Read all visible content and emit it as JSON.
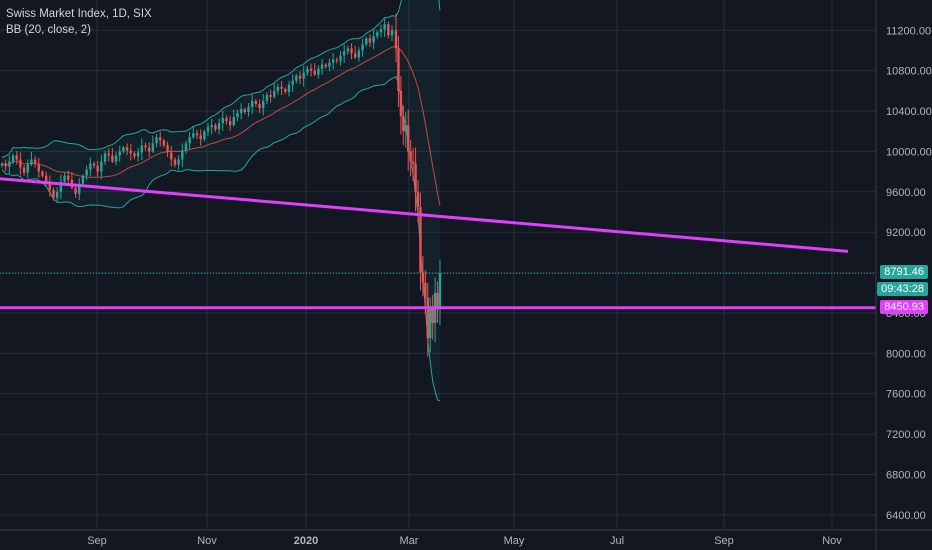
{
  "chart_data": {
    "type": "candlestick",
    "title": "Swiss Market Index, 1D, SIX",
    "indicator": "BB (20, close, 2)",
    "y_ticks": [
      6400,
      6800,
      7200,
      7600,
      8000,
      8400,
      8800,
      9200,
      9600,
      10000,
      10400,
      10800,
      11200
    ],
    "y_tick_labels": [
      "6400.00",
      "6800.00",
      "7200.00",
      "7600.00",
      "8000.00",
      "8400.00",
      "8800.00",
      "9200.00",
      "9600.00",
      "10000.00",
      "10400.00",
      "10800.00",
      "11200.00"
    ],
    "ylim": [
      6250,
      11500
    ],
    "x_tick_labels": [
      "Sep",
      "Nov",
      "2020",
      "Mar",
      "May",
      "Jul",
      "Sep",
      "Nov"
    ],
    "last_price": "8791.46",
    "countdown": "09:43:28",
    "horizontal_level": "8450.93",
    "trendline_start": 9730,
    "trendline_end": 9010,
    "closes_early": [
      9880,
      9850,
      9900,
      9960,
      9920,
      9840,
      9790,
      9870,
      9920,
      9880,
      9800,
      9760,
      9700,
      9620,
      9540,
      9600,
      9700,
      9760,
      9720,
      9640,
      9580,
      9680,
      9760,
      9820,
      9880,
      9860,
      9800,
      9900,
      9980,
      9960,
      9900,
      9960,
      10000,
      10040,
      10010,
      9980,
      9950,
      9990,
      10060,
      10040,
      10000,
      10080,
      10140,
      10110,
      10060,
      9990,
      9920,
      9870,
      9920,
      10010,
      10080,
      10140,
      10180,
      10160,
      10120,
      10200,
      10240,
      10260,
      10220,
      10280,
      10330,
      10300,
      10260,
      10340,
      10380,
      10420,
      10390,
      10440,
      10500,
      10470,
      10430,
      10500,
      10560,
      10540,
      10600,
      10640,
      10620,
      10590,
      10660,
      10700,
      10750,
      10720,
      10780,
      10820,
      10800,
      10760,
      10820,
      10860,
      10840,
      10880,
      10910,
      10900,
      10950,
      10990,
      11020,
      10970,
      10930,
      11000,
      11060,
      11120,
      11080,
      11140,
      11180,
      11210,
      11260,
      11150,
      11200
    ],
    "closes_crash": [
      11020,
      10600,
      10350,
      10200,
      10260,
      10000,
      9900,
      9880,
      9600,
      9450,
      8800,
      8700,
      8550,
      8150,
      8450,
      8300,
      8600,
      8450,
      8791
    ]
  }
}
